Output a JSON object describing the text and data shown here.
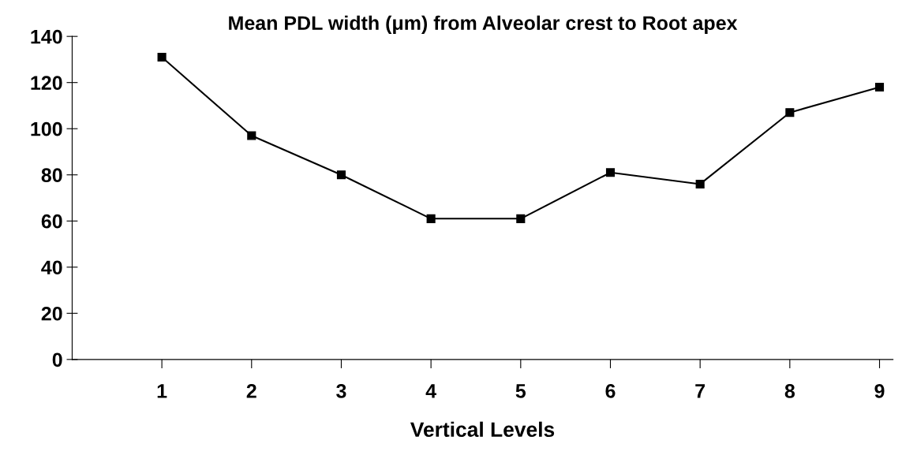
{
  "chart_data": {
    "type": "line",
    "title": "Mean PDL width (μm) from Alveolar crest to Root apex",
    "xlabel": "Vertical Levels",
    "categories": [
      "1",
      "2",
      "3",
      "4",
      "5",
      "6",
      "7",
      "8",
      "9"
    ],
    "series": [
      {
        "color": "#000000",
        "values": [
          131,
          97,
          80,
          61,
          61,
          81,
          76,
          107,
          118
        ]
      }
    ],
    "ylim": [
      0,
      140
    ],
    "yticks": [
      0,
      20,
      40,
      60,
      80,
      100,
      120,
      140
    ],
    "grid": false,
    "legend": false,
    "marker": "square",
    "line_style": "solid"
  }
}
